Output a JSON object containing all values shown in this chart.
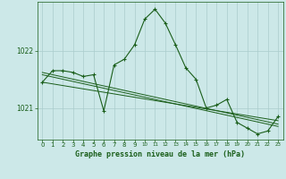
{
  "title": "Graphe pression niveau de la mer (hPa)",
  "bg_color": "#cce8e8",
  "grid_color": "#aacccc",
  "line_color": "#1a5e1a",
  "marker_color": "#1a5e1a",
  "x_ticks": [
    0,
    1,
    2,
    3,
    4,
    5,
    6,
    7,
    8,
    9,
    10,
    11,
    12,
    13,
    14,
    15,
    16,
    17,
    18,
    19,
    20,
    21,
    22,
    23
  ],
  "ylim": [
    1020.45,
    1022.85
  ],
  "yticks": [
    1021,
    1022
  ],
  "series1": {
    "x": [
      0,
      1,
      2,
      3,
      4,
      5,
      6,
      7,
      8,
      9,
      10,
      11,
      12,
      13,
      14,
      15,
      16,
      17,
      18,
      19,
      20,
      21,
      22,
      23
    ],
    "y": [
      1021.45,
      1021.65,
      1021.65,
      1021.62,
      1021.55,
      1021.58,
      1020.95,
      1021.75,
      1021.85,
      1022.1,
      1022.55,
      1022.72,
      1022.48,
      1022.1,
      1021.7,
      1021.5,
      1021.0,
      1021.05,
      1021.15,
      1020.75,
      1020.65,
      1020.55,
      1020.6,
      1020.85
    ]
  },
  "series2": {
    "x": [
      0,
      23
    ],
    "y": [
      1021.58,
      1020.68
    ]
  },
  "series3": {
    "x": [
      0,
      23
    ],
    "y": [
      1021.45,
      1020.78
    ]
  },
  "series4": {
    "x": [
      0,
      23
    ],
    "y": [
      1021.62,
      1020.72
    ]
  }
}
